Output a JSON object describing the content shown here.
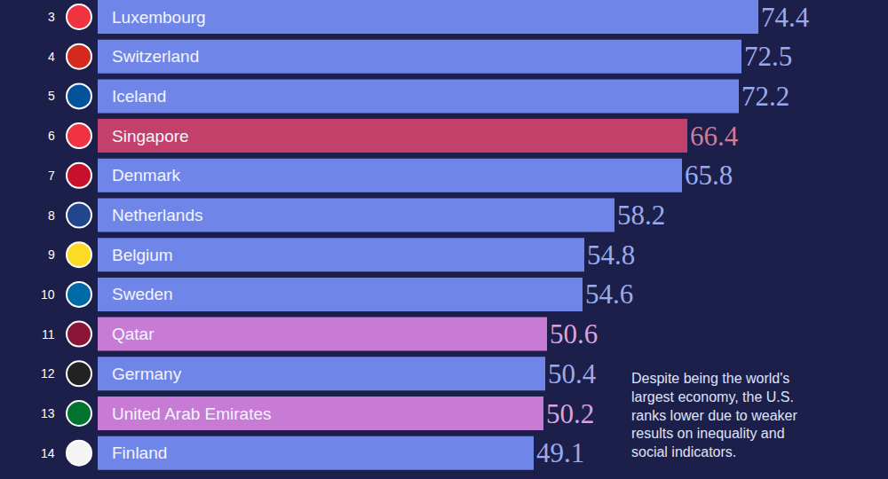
{
  "chart_data": {
    "type": "bar",
    "orientation": "horizontal",
    "categories": [
      "Luxembourg",
      "Switzerland",
      "Iceland",
      "Singapore",
      "Denmark",
      "Netherlands",
      "Belgium",
      "Sweden",
      "Qatar",
      "Germany",
      "United Arab Emirates",
      "Finland"
    ],
    "ranks": [
      3,
      4,
      5,
      6,
      7,
      8,
      9,
      10,
      11,
      12,
      13,
      14
    ],
    "values": [
      74.4,
      72.5,
      72.2,
      66.4,
      65.8,
      58.2,
      54.8,
      54.6,
      50.6,
      50.4,
      50.2,
      49.1
    ],
    "colors": [
      "#6f86e8",
      "#6f86e8",
      "#6f86e8",
      "#c2406a",
      "#6f86e8",
      "#6f86e8",
      "#6f86e8",
      "#6f86e8",
      "#c77bd4",
      "#6f86e8",
      "#c77bd4",
      "#6f86e8"
    ],
    "xlim": [
      0,
      89
    ],
    "tick_labels": false,
    "grid": false,
    "data_labels": true,
    "annotation": "Despite being the world's largest economy, the U.S. ranks lower due to weaker results on inequality and social indicators."
  }
}
